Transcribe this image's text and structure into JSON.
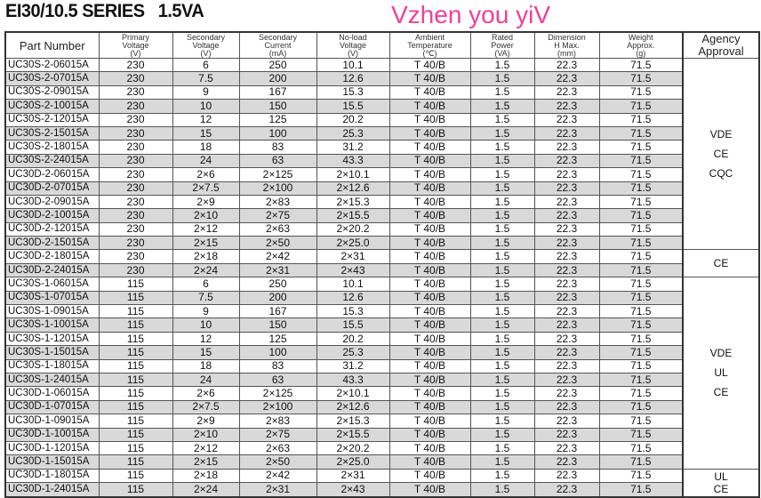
{
  "title": "EI30/10.5 SERIES   1.5VA",
  "headers": [
    [
      "Part Number"
    ],
    [
      "Primary",
      "Voltage",
      "(V)"
    ],
    [
      "Secondary",
      "Voltage",
      "(V)"
    ],
    [
      "Secondary",
      "Current",
      "(mA)"
    ],
    [
      "No-load",
      "Voltage",
      "(V)"
    ],
    [
      "Ambient",
      "Temperature",
      "(℃)"
    ],
    [
      "Rated",
      "Power",
      "(VA)"
    ],
    [
      "Dimension",
      "H Max.",
      "(mm)"
    ],
    [
      "Weight",
      "Approx.",
      "(g)"
    ],
    [
      "Agency",
      "Approval"
    ]
  ],
  "rows": [
    [
      "UC30S-2-06015A",
      "230",
      "6",
      "250",
      "10.1",
      "T 40/B",
      "1.5",
      "22.3",
      "71.5"
    ],
    [
      "UC30S-2-07015A",
      "230",
      "7.5",
      "200",
      "12.6",
      "T 40/B",
      "1.5",
      "22.3",
      "71.5"
    ],
    [
      "UC30S-2-09015A",
      "230",
      "9",
      "167",
      "15.3",
      "T 40/B",
      "1.5",
      "22.3",
      "71.5"
    ],
    [
      "UC30S-2-10015A",
      "230",
      "10",
      "150",
      "15.5",
      "T 40/B",
      "1.5",
      "22.3",
      "71.5"
    ],
    [
      "UC30S-2-12015A",
      "230",
      "12",
      "125",
      "20.2",
      "T 40/B",
      "1.5",
      "22.3",
      "71.5"
    ],
    [
      "UC30S-2-15015A",
      "230",
      "15",
      "100",
      "25.3",
      "T 40/B",
      "1.5",
      "22.3",
      "71.5"
    ],
    [
      "UC30S-2-18015A",
      "230",
      "18",
      "83",
      "31.2",
      "T 40/B",
      "1.5",
      "22.3",
      "71.5"
    ],
    [
      "UC30S-2-24015A",
      "230",
      "24",
      "63",
      "43.3",
      "T 40/B",
      "1.5",
      "22.3",
      "71.5"
    ],
    [
      "UC30D-2-06015A",
      "230",
      "2×6",
      "2×125",
      "2×10.1",
      "T 40/B",
      "1.5",
      "22.3",
      "71.5"
    ],
    [
      "UC30D-2-07015A",
      "230",
      "2×7.5",
      "2×100",
      "2×12.6",
      "T 40/B",
      "1.5",
      "22.3",
      "71.5"
    ],
    [
      "UC30D-2-09015A",
      "230",
      "2×9",
      "2×83",
      "2×15.3",
      "T 40/B",
      "1.5",
      "22.3",
      "71.5"
    ],
    [
      "UC30D-2-10015A",
      "230",
      "2×10",
      "2×75",
      "2×15.5",
      "T 40/B",
      "1.5",
      "22.3",
      "71.5"
    ],
    [
      "UC30D-2-12015A",
      "230",
      "2×12",
      "2×63",
      "2×20.2",
      "T 40/B",
      "1.5",
      "22.3",
      "71.5"
    ],
    [
      "UC30D-2-15015A",
      "230",
      "2×15",
      "2×50",
      "2×25.0",
      "T 40/B",
      "1.5",
      "22.3",
      "71.5"
    ],
    [
      "UC30D-2-18015A",
      "230",
      "2×18",
      "2×42",
      "2×31",
      "T 40/B",
      "1.5",
      "22.3",
      "71.5"
    ],
    [
      "UC30D-2-24015A",
      "230",
      "2×24",
      "2×31",
      "2×43",
      "T 40/B",
      "1.5",
      "22.3",
      "71.5"
    ],
    [
      "UC30S-1-06015A",
      "115",
      "6",
      "250",
      "10.1",
      "T 40/B",
      "1.5",
      "22.3",
      "71.5"
    ],
    [
      "UC30S-1-07015A",
      "115",
      "7.5",
      "200",
      "12.6",
      "T 40/B",
      "1.5",
      "22.3",
      "71.5"
    ],
    [
      "UC30S-1-09015A",
      "115",
      "9",
      "167",
      "15.3",
      "T 40/B",
      "1.5",
      "22.3",
      "71.5"
    ],
    [
      "UC30S-1-10015A",
      "115",
      "10",
      "150",
      "15.5",
      "T 40/B",
      "1.5",
      "22.3",
      "71.5"
    ],
    [
      "UC30S-1-12015A",
      "115",
      "12",
      "125",
      "20.2",
      "T 40/B",
      "1.5",
      "22.3",
      "71.5"
    ],
    [
      "UC30S-1-15015A",
      "115",
      "15",
      "100",
      "25.3",
      "T 40/B",
      "1.5",
      "22.3",
      "71.5"
    ],
    [
      "UC30S-1-18015A",
      "115",
      "18",
      "83",
      "31.2",
      "T 40/B",
      "1.5",
      "22.3",
      "71.5"
    ],
    [
      "UC30S-1-24015A",
      "115",
      "24",
      "63",
      "43.3",
      "T 40/B",
      "1.5",
      "22.3",
      "71.5"
    ],
    [
      "UC30D-1-06015A",
      "115",
      "2×6",
      "2×125",
      "2×10.1",
      "T 40/B",
      "1.5",
      "22.3",
      "71.5"
    ],
    [
      "UC30D-1-07015A",
      "115",
      "2×7.5",
      "2×100",
      "2×12.6",
      "T 40/B",
      "1.5",
      "22.3",
      "71.5"
    ],
    [
      "UC30D-1-09015A",
      "115",
      "2×9",
      "2×83",
      "2×15.3",
      "T 40/B",
      "1.5",
      "22.3",
      "71.5"
    ],
    [
      "UC30D-1-10015A",
      "115",
      "2×10",
      "2×75",
      "2×15.5",
      "T 40/B",
      "1.5",
      "22.3",
      "71.5"
    ],
    [
      "UC30D-1-12015A",
      "115",
      "2×12",
      "2×63",
      "2×20.2",
      "T 40/B",
      "1.5",
      "22.3",
      "71.5"
    ],
    [
      "UC30D-1-15015A",
      "115",
      "2×15",
      "2×50",
      "2×25.0",
      "T 40/B",
      "1.5",
      "22.3",
      "71.5"
    ],
    [
      "UC30D-1-18015A",
      "115",
      "2×18",
      "2×42",
      "2×31",
      "T 40/B",
      "1.5",
      "22.3",
      "71.5"
    ],
    [
      "UC30D-1-24015A",
      "115",
      "2×24",
      "2×31",
      "2×43",
      "T 40/B",
      "1.5",
      "22.3",
      "71.5"
    ]
  ],
  "agency_groups": [
    {
      "rows": 14,
      "lines": [
        "VDE",
        "CE",
        "CQC"
      ]
    },
    {
      "rows": 2,
      "lines": [
        "CE"
      ]
    },
    {
      "rows": 14,
      "lines": [
        "VDE",
        "UL",
        "CE"
      ]
    },
    {
      "rows": 2,
      "lines": [
        "UL",
        "CE"
      ]
    }
  ],
  "row_shading": "#d9d9d9",
  "watermark": {
    "text": "Vzhen you yiV",
    "color": "#f0409a"
  }
}
